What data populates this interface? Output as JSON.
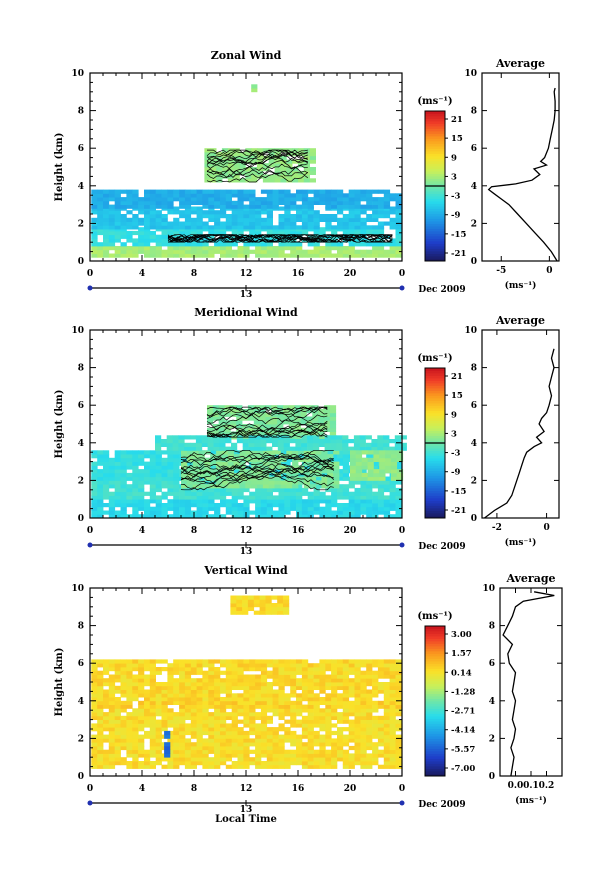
{
  "figure": {
    "xlabel_bottom": "Local Time",
    "date_label": "Dec 2009",
    "date_marker": "13"
  },
  "chart_data": [
    {
      "type": "heatmap",
      "title": "Zonal Wind",
      "ylabel": "Height (km)",
      "xlim": [
        0,
        24
      ],
      "ylim": [
        0,
        10
      ],
      "xticks": [
        "0",
        "4",
        "8",
        "12",
        "16",
        "20",
        "0"
      ],
      "yticks": [
        "0",
        "2",
        "4",
        "6",
        "8",
        "10"
      ],
      "colorbar": {
        "unit": "(ms⁻¹)",
        "ticks": [
          "21",
          "15",
          "9",
          "3",
          "-3",
          "-9",
          "-15",
          "-21"
        ],
        "range": [
          -24,
          24
        ],
        "zero_line": true
      },
      "layers": [
        {
          "h0": 0.2,
          "h1": 0.8,
          "t0": 0.1,
          "t1": 23.9,
          "value": 3
        },
        {
          "h0": 0.8,
          "h1": 1.7,
          "t0": 0.1,
          "t1": 23.9,
          "value": -4
        },
        {
          "h0": 1.7,
          "h1": 2.8,
          "t0": 0.1,
          "t1": 23.9,
          "value": -7
        },
        {
          "h0": 2.8,
          "h1": 3.8,
          "t0": 0.1,
          "t1": 23.9,
          "value": -9
        },
        {
          "h0": 4.2,
          "h1": 6.0,
          "t0": 8.8,
          "t1": 17.3,
          "value": 2
        },
        {
          "h0": 9.0,
          "h1": 9.3,
          "t0": 12.4,
          "t1": 12.8,
          "value": 2
        }
      ],
      "profile": {
        "title": "Average",
        "xlabel": "(ms⁻¹)",
        "xlim": [
          -7,
          1
        ],
        "xticks": [
          "-5",
          "0"
        ],
        "yticks": [
          "0",
          "2",
          "4",
          "6",
          "8",
          "10"
        ],
        "h": [
          0.0,
          0.5,
          1.0,
          1.5,
          2.0,
          2.5,
          3.0,
          3.3,
          3.6,
          3.8,
          3.95,
          4.1,
          4.3,
          4.6,
          4.9,
          5.1,
          5.3,
          5.5,
          6.0,
          6.5,
          7.0,
          7.5,
          8.0,
          8.5,
          9.0,
          9.2
        ],
        "u": [
          0.8,
          0.2,
          -0.6,
          -1.5,
          -2.4,
          -3.3,
          -4.2,
          -5.0,
          -5.8,
          -6.3,
          -6.0,
          -3.5,
          -1.8,
          -1.0,
          -1.6,
          -0.3,
          -0.9,
          -0.5,
          -0.1,
          0.1,
          0.3,
          0.5,
          0.6,
          0.6,
          0.5,
          0.6
        ]
      }
    },
    {
      "type": "heatmap",
      "title": "Meridional Wind",
      "ylabel": "Height (km)",
      "xlim": [
        0,
        24
      ],
      "ylim": [
        0,
        10
      ],
      "xticks": [
        "0",
        "4",
        "8",
        "12",
        "16",
        "20",
        "0"
      ],
      "yticks": [
        "0",
        "2",
        "4",
        "6",
        "8",
        "10"
      ],
      "colorbar": {
        "unit": "(ms⁻¹)",
        "ticks": [
          "21",
          "15",
          "9",
          "3",
          "-3",
          "-9",
          "-15",
          "-21"
        ],
        "range": [
          -24,
          24
        ],
        "zero_line": true
      },
      "layers": [
        {
          "h0": 0.0,
          "h1": 1.0,
          "t0": 0.1,
          "t1": 23.9,
          "value": -5
        },
        {
          "h0": 1.0,
          "h1": 2.0,
          "t0": 0.1,
          "t1": 23.9,
          "value": -3
        },
        {
          "h0": 2.0,
          "h1": 3.6,
          "t0": 0.1,
          "t1": 23.9,
          "value": -4
        },
        {
          "h0": 1.6,
          "h1": 3.6,
          "t0": 7.0,
          "t1": 19.0,
          "value": 1
        },
        {
          "h0": 4.2,
          "h1": 6.0,
          "t0": 9.0,
          "t1": 18.5,
          "value": 1
        },
        {
          "h0": 3.6,
          "h1": 4.3,
          "t0": 5.0,
          "t1": 23.9,
          "value": -3
        },
        {
          "h0": 2.0,
          "h1": 3.6,
          "t0": 20.0,
          "t1": 23.9,
          "value": 2
        }
      ],
      "profile": {
        "title": "Average",
        "xlabel": "(ms⁻¹)",
        "xlim": [
          -2.6,
          0.5
        ],
        "xticks": [
          "-2",
          "0"
        ],
        "yticks": [
          "0",
          "2",
          "4",
          "6",
          "8",
          "10"
        ],
        "h": [
          0.0,
          0.4,
          0.8,
          1.2,
          1.6,
          2.0,
          2.4,
          2.8,
          3.2,
          3.5,
          3.8,
          4.0,
          4.3,
          4.6,
          5.0,
          5.3,
          5.6,
          6.0,
          6.5,
          7.0,
          7.5,
          8.0,
          8.5,
          9.0
        ],
        "u": [
          -2.5,
          -2.1,
          -1.6,
          -1.4,
          -1.3,
          -1.2,
          -1.1,
          -1.0,
          -0.9,
          -0.8,
          -0.5,
          -0.2,
          -0.4,
          -0.1,
          -0.3,
          -0.2,
          0.0,
          0.1,
          0.2,
          0.1,
          0.2,
          0.3,
          0.2,
          0.3
        ]
      }
    },
    {
      "type": "heatmap",
      "title": "Vertical Wind",
      "ylabel": "Height (km)",
      "xlabel": "Local Time",
      "xlim": [
        0,
        24
      ],
      "ylim": [
        0,
        10
      ],
      "xticks": [
        "0",
        "4",
        "8",
        "12",
        "16",
        "20",
        "0"
      ],
      "yticks": [
        "0",
        "2",
        "4",
        "6",
        "8",
        "10"
      ],
      "colorbar": {
        "unit": "(ms⁻¹)",
        "ticks": [
          "3.00",
          "1.57",
          "0.14",
          "-1.28",
          "-2.71",
          "-4.14",
          "-5.57",
          "-7.00"
        ],
        "range": [
          -7.7,
          3.7
        ],
        "zero_line": false
      },
      "layers": [
        {
          "h0": 0.4,
          "h1": 3.6,
          "t0": 0.1,
          "t1": 23.9,
          "value": 0.3
        },
        {
          "h0": 3.6,
          "h1": 3.9,
          "t0": 0.1,
          "t1": 23.9,
          "value": 0.5
        },
        {
          "h0": 4.0,
          "h1": 6.2,
          "t0": 0.1,
          "t1": 23.9,
          "value": 0.4
        },
        {
          "h0": 8.6,
          "h1": 9.5,
          "t0": 10.8,
          "t1": 15.0,
          "value": 0.4
        },
        {
          "h0": 1.0,
          "h1": 2.4,
          "t0": 5.7,
          "t1": 6.0,
          "value": -5.5
        }
      ],
      "profile": {
        "title": "Average",
        "xlabel": "(ms⁻¹)",
        "xlim": [
          -0.1,
          0.3
        ],
        "xticks": [
          "0.0",
          "0.1",
          "0.2"
        ],
        "yticks": [
          "0",
          "2",
          "4",
          "6",
          "8",
          "10"
        ],
        "h": [
          0.0,
          0.5,
          1.0,
          1.5,
          2.0,
          2.5,
          3.0,
          3.5,
          4.0,
          4.5,
          5.0,
          5.5,
          6.0,
          6.5,
          7.0,
          7.5,
          8.0,
          8.5,
          9.0,
          9.3,
          9.6,
          9.8
        ],
        "u": [
          -0.03,
          -0.02,
          -0.01,
          -0.03,
          -0.01,
          0.0,
          -0.02,
          -0.01,
          0.0,
          -0.02,
          -0.01,
          0.0,
          -0.04,
          -0.05,
          -0.02,
          -0.08,
          -0.05,
          -0.02,
          0.0,
          0.05,
          0.25,
          0.12
        ]
      }
    }
  ]
}
